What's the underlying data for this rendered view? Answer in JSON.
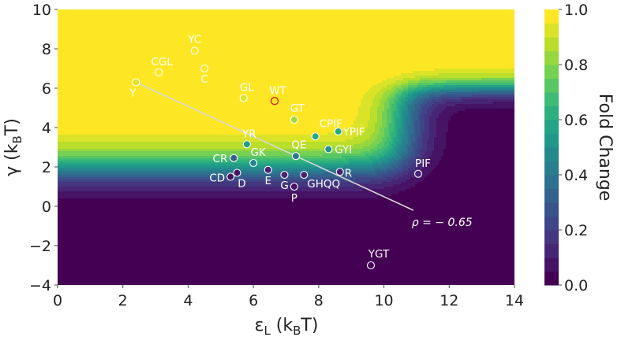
{
  "chart_data": {
    "type": "heatmap",
    "title": "",
    "xlabel_base": "ε",
    "xlabel_sub": "L",
    "xlabel_unit": "(k",
    "xlabel_unit_sub": "B",
    "xlabel_unit_end": "T)",
    "ylabel_base": "γ",
    "ylabel_unit": "(k",
    "ylabel_unit_sub": "B",
    "ylabel_unit_end": "T)",
    "xlim": [
      0,
      14
    ],
    "ylim": [
      -4,
      10
    ],
    "xticks": [
      0,
      2,
      4,
      6,
      8,
      10,
      12,
      14
    ],
    "yticks": [
      -4,
      -2,
      0,
      2,
      4,
      6,
      8,
      10
    ],
    "colorbar": {
      "label": "Fold Change",
      "range": [
        0.0,
        1.0
      ],
      "ticks": [
        "0.0",
        "0.2",
        "0.4",
        "0.6",
        "0.8",
        "1.0"
      ],
      "colors": [
        "#440154",
        "#482878",
        "#3e4989",
        "#31688e",
        "#26828e",
        "#1f9e89",
        "#35b779",
        "#6ece58",
        "#b5de2b",
        "#fde725"
      ]
    },
    "points": [
      {
        "label": "YC",
        "x": 4.2,
        "y": 7.9,
        "fc": 1.0
      },
      {
        "label": "CGL",
        "x": 3.1,
        "y": 6.8,
        "fc": 1.0
      },
      {
        "label": "C",
        "x": 4.5,
        "y": 7.0,
        "fc": 1.0
      },
      {
        "label": "Y",
        "x": 2.4,
        "y": 6.3,
        "fc": 0.95
      },
      {
        "label": "GL",
        "x": 5.7,
        "y": 5.5,
        "fc": 0.95
      },
      {
        "label": "WT",
        "x": 6.65,
        "y": 5.35,
        "fc": 0.88,
        "highlight": true
      },
      {
        "label": "GT",
        "x": 7.25,
        "y": 4.4,
        "fc": 0.85
      },
      {
        "label": "CPIF",
        "x": 7.9,
        "y": 3.55,
        "fc": 0.6
      },
      {
        "label": "YPIF",
        "x": 8.6,
        "y": 3.8,
        "fc": 0.6
      },
      {
        "label": "YR",
        "x": 5.8,
        "y": 3.15,
        "fc": 0.55
      },
      {
        "label": "QE",
        "x": 7.3,
        "y": 2.55,
        "fc": 0.4
      },
      {
        "label": "GYI",
        "x": 8.3,
        "y": 2.9,
        "fc": 0.5
      },
      {
        "label": "CR",
        "x": 5.4,
        "y": 2.45,
        "fc": 0.3
      },
      {
        "label": "GK",
        "x": 6.0,
        "y": 2.2,
        "fc": 0.45
      },
      {
        "label": "E",
        "x": 6.45,
        "y": 1.85,
        "fc": 0.1
      },
      {
        "label": "G",
        "x": 6.95,
        "y": 1.6,
        "fc": 0.1
      },
      {
        "label": "GHQQ",
        "x": 7.55,
        "y": 1.6,
        "fc": 0.1
      },
      {
        "label": "R",
        "x": 8.65,
        "y": 1.75,
        "fc": 0.1
      },
      {
        "label": "PIF",
        "x": 11.05,
        "y": 1.65,
        "fc": 0.1
      },
      {
        "label": "CD",
        "x": 5.3,
        "y": 1.5,
        "fc": 0.05
      },
      {
        "label": "D",
        "x": 5.5,
        "y": 1.7,
        "fc": 0.05
      },
      {
        "label": "P",
        "x": 7.25,
        "y": 1.0,
        "fc": 0.05
      },
      {
        "label": "YGT",
        "x": 9.6,
        "y": -3.0,
        "fc": 0.0
      }
    ],
    "fit_line": {
      "x": [
        2.4,
        10.9
      ],
      "y": [
        6.3,
        -0.2
      ]
    },
    "annotation": "ρ = − 0.65"
  }
}
